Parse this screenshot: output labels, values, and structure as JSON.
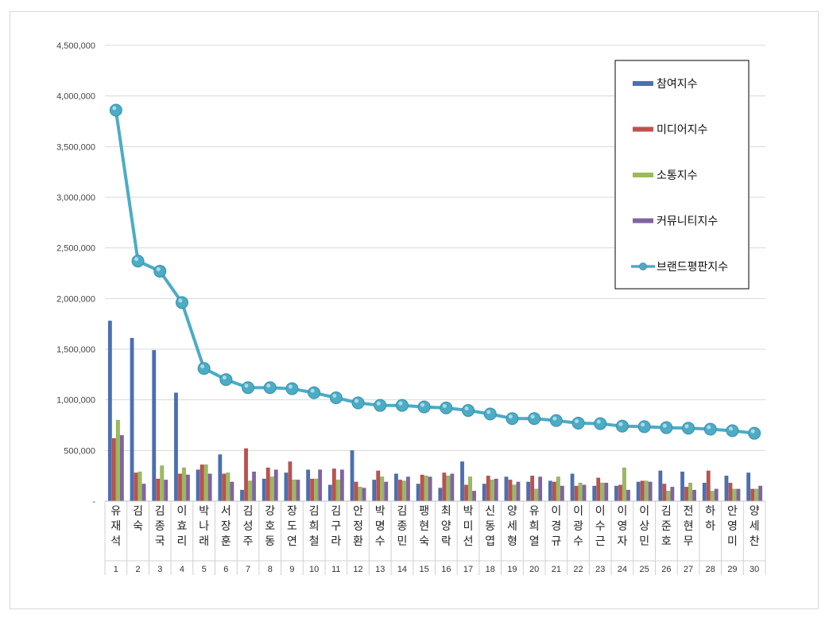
{
  "chart_data": {
    "type": "bar",
    "categories": [
      "유재석",
      "김숙",
      "김종국",
      "이효리",
      "박나래",
      "서장훈",
      "김성주",
      "강호동",
      "장도연",
      "김희철",
      "김구라",
      "안정환",
      "박명수",
      "김종민",
      "팽현숙",
      "최양락",
      "박미선",
      "신동엽",
      "양세형",
      "유희열",
      "이경규",
      "이광수",
      "이수근",
      "이영자",
      "이상민",
      "김준호",
      "전현무",
      "하하",
      "안영미",
      "양세찬"
    ],
    "ranks": [
      "1",
      "2",
      "3",
      "4",
      "5",
      "6",
      "7",
      "8",
      "9",
      "10",
      "11",
      "12",
      "13",
      "14",
      "15",
      "16",
      "17",
      "18",
      "19",
      "20",
      "21",
      "22",
      "23",
      "24",
      "25",
      "26",
      "27",
      "28",
      "29",
      "30"
    ],
    "series": [
      {
        "name": "참여지수",
        "kind": "bar",
        "color": "#4a6fb5",
        "values": [
          1780000,
          1610000,
          1490000,
          1070000,
          310000,
          460000,
          110000,
          220000,
          280000,
          310000,
          160000,
          500000,
          210000,
          270000,
          170000,
          130000,
          390000,
          170000,
          240000,
          190000,
          200000,
          270000,
          150000,
          150000,
          190000,
          300000,
          290000,
          180000,
          250000,
          280000
        ]
      },
      {
        "name": "미디어지수",
        "kind": "bar",
        "color": "#c0504d",
        "values": [
          620000,
          280000,
          220000,
          270000,
          360000,
          270000,
          520000,
          330000,
          390000,
          220000,
          320000,
          190000,
          300000,
          210000,
          260000,
          280000,
          160000,
          250000,
          210000,
          250000,
          190000,
          150000,
          230000,
          160000,
          200000,
          170000,
          140000,
          300000,
          180000,
          120000
        ]
      },
      {
        "name": "소통지수",
        "kind": "bar",
        "color": "#9bbb59",
        "values": [
          800000,
          290000,
          350000,
          330000,
          360000,
          280000,
          200000,
          240000,
          210000,
          220000,
          210000,
          140000,
          240000,
          200000,
          250000,
          250000,
          240000,
          210000,
          160000,
          120000,
          240000,
          180000,
          180000,
          330000,
          200000,
          100000,
          180000,
          100000,
          120000,
          120000
        ]
      },
      {
        "name": "커뮤니티지수",
        "kind": "bar",
        "color": "#8064a2",
        "values": [
          650000,
          170000,
          210000,
          260000,
          270000,
          190000,
          290000,
          310000,
          210000,
          310000,
          310000,
          130000,
          190000,
          240000,
          240000,
          270000,
          100000,
          220000,
          190000,
          240000,
          150000,
          160000,
          180000,
          110000,
          190000,
          140000,
          110000,
          120000,
          120000,
          150000
        ]
      },
      {
        "name": "브랜드평판지수",
        "kind": "line",
        "color": "#4bacc6",
        "values": [
          3860000,
          2370000,
          2270000,
          1960000,
          1310000,
          1200000,
          1120000,
          1120000,
          1110000,
          1070000,
          1020000,
          970000,
          945000,
          945000,
          930000,
          920000,
          895000,
          860000,
          815000,
          815000,
          795000,
          770000,
          765000,
          740000,
          735000,
          725000,
          720000,
          710000,
          695000,
          670000
        ]
      }
    ],
    "ylim": [
      0,
      4500000
    ],
    "ytick_labels": [
      "-",
      "500,000",
      "1,000,000",
      "1,500,000",
      "2,000,000",
      "2,500,000",
      "3,000,000",
      "3,500,000",
      "4,000,000",
      "4,500,000"
    ],
    "grid": true,
    "legend_position": "top-right"
  }
}
